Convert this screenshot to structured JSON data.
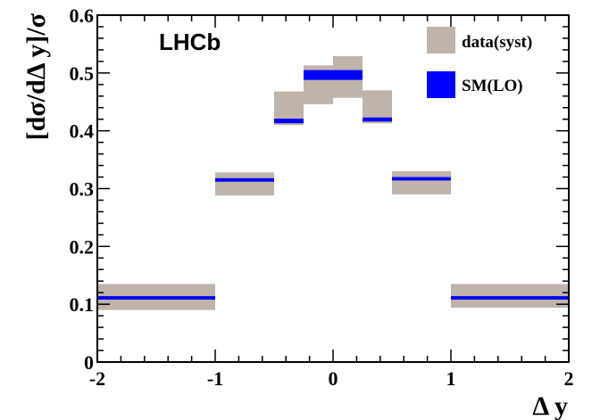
{
  "chart_data": {
    "type": "bar",
    "title": "",
    "xlabel": "Δ y",
    "ylabel": "[dσ/dΔ y]/σ",
    "xlim": [
      -2,
      2
    ],
    "ylim": [
      0,
      0.6
    ],
    "xticks": [
      "-2",
      "-1",
      "0",
      "1",
      "2"
    ],
    "yticks": [
      "0",
      "0.1",
      "0.2",
      "0.3",
      "0.4",
      "0.5",
      "0.6"
    ],
    "annotation": "LHCb",
    "legend_position": "top-right",
    "legend": [
      {
        "label": "data(syst)",
        "color": "#bfb3aa"
      },
      {
        "label": "SM(LO)",
        "color": "#0000ff"
      }
    ],
    "bins": [
      {
        "x_low": -2.0,
        "x_high": -1.0,
        "data_low": 0.09,
        "data_high": 0.135,
        "sm_low": 0.108,
        "sm_high": 0.114
      },
      {
        "x_low": -1.0,
        "x_high": -0.5,
        "data_low": 0.288,
        "data_high": 0.328,
        "sm_low": 0.312,
        "sm_high": 0.318
      },
      {
        "x_low": -0.5,
        "x_high": -0.25,
        "data_low": 0.41,
        "data_high": 0.468,
        "sm_low": 0.413,
        "sm_high": 0.421
      },
      {
        "x_low": -0.25,
        "x_high": 0.0,
        "data_low": 0.446,
        "data_high": 0.513,
        "sm_low": 0.488,
        "sm_high": 0.505
      },
      {
        "x_low": 0.0,
        "x_high": 0.25,
        "data_low": 0.457,
        "data_high": 0.529,
        "sm_low": 0.488,
        "sm_high": 0.505
      },
      {
        "x_low": 0.25,
        "x_high": 0.5,
        "data_low": 0.413,
        "data_high": 0.47,
        "sm_low": 0.416,
        "sm_high": 0.423
      },
      {
        "x_low": 0.5,
        "x_high": 1.0,
        "data_low": 0.29,
        "data_high": 0.33,
        "sm_low": 0.314,
        "sm_high": 0.32
      },
      {
        "x_low": 1.0,
        "x_high": 2.0,
        "data_low": 0.094,
        "data_high": 0.135,
        "sm_low": 0.108,
        "sm_high": 0.114
      }
    ]
  }
}
